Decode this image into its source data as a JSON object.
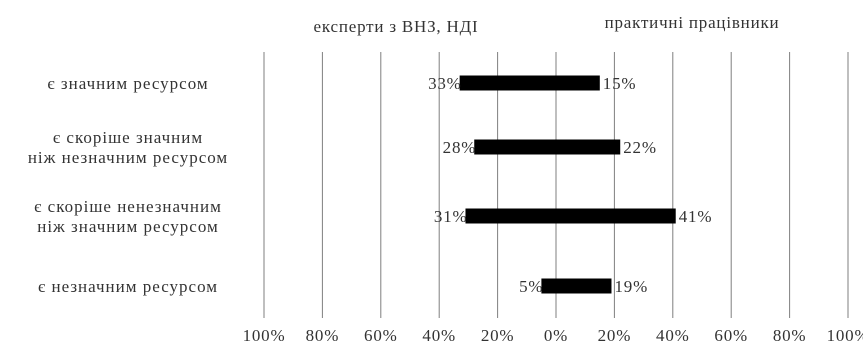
{
  "chart_data": {
    "type": "bar",
    "orientation": "horizontal-diverging",
    "grid": true,
    "xlim": [
      -100,
      100
    ],
    "x_ticks": [
      "100%",
      "80%",
      "60%",
      "40%",
      "20%",
      "0%",
      "20%",
      "40%",
      "60%",
      "80%",
      "100%"
    ],
    "categories": [
      [
        "є значним ресурсом"
      ],
      [
        "є скоріше значним",
        "ніж незначним ресурсом"
      ],
      [
        "є скоріше ненезначним",
        "ніж значним ресурсом"
      ],
      [
        "є незначним ресурсом"
      ]
    ],
    "series": [
      {
        "name": "експерти з ВНЗ, НДІ",
        "values": [
          33,
          28,
          31,
          5
        ],
        "direction": "left",
        "color": "#000000"
      },
      {
        "name": "практичні працівники",
        "values": [
          15,
          22,
          41,
          19
        ],
        "direction": "right",
        "color": "#000000"
      }
    ],
    "data_labels": {
      "left": [
        "33%",
        "28%",
        "31%",
        "5%"
      ],
      "right": [
        "15%",
        "22%",
        "41%",
        "19%"
      ]
    },
    "gridline_color": "#7f7f7f",
    "text_color": "#333333"
  }
}
